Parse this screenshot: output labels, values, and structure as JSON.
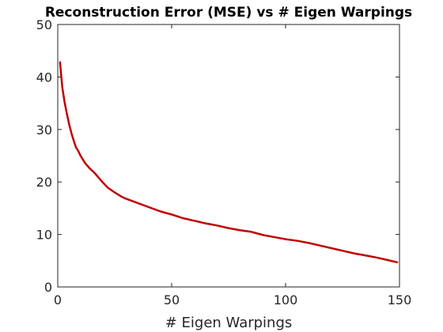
{
  "chart_data": {
    "type": "line",
    "title": "Reconstruction Error (MSE) vs # Eigen Warpings",
    "xlabel": "# Eigen Warpings",
    "ylabel": "",
    "xlim": [
      0,
      150
    ],
    "ylim": [
      0,
      50
    ],
    "xticks": [
      "0",
      "50",
      "100",
      "150"
    ],
    "yticks": [
      "0",
      "10",
      "20",
      "30",
      "40",
      "50"
    ],
    "grid": false,
    "legend": "none",
    "series": [
      {
        "color": "#c00000",
        "x": [
          1,
          2,
          3,
          4,
          5,
          6,
          7,
          8,
          9,
          10,
          12,
          14,
          16,
          18,
          20,
          22,
          25,
          28,
          30,
          35,
          40,
          45,
          50,
          55,
          60,
          65,
          70,
          75,
          80,
          85,
          90,
          95,
          100,
          105,
          110,
          115,
          120,
          125,
          130,
          135,
          140,
          145,
          149
        ],
        "y": [
          42.8,
          38.0,
          35.2,
          33.0,
          31.0,
          29.3,
          27.9,
          26.6,
          25.9,
          25.0,
          23.6,
          22.6,
          21.8,
          20.8,
          19.8,
          18.9,
          18.0,
          17.2,
          16.8,
          16.0,
          15.2,
          14.4,
          13.8,
          13.1,
          12.6,
          12.1,
          11.7,
          11.2,
          10.8,
          10.5,
          9.9,
          9.5,
          9.1,
          8.8,
          8.4,
          7.9,
          7.4,
          6.9,
          6.4,
          6.0,
          5.6,
          5.1,
          4.7
        ]
      }
    ]
  }
}
